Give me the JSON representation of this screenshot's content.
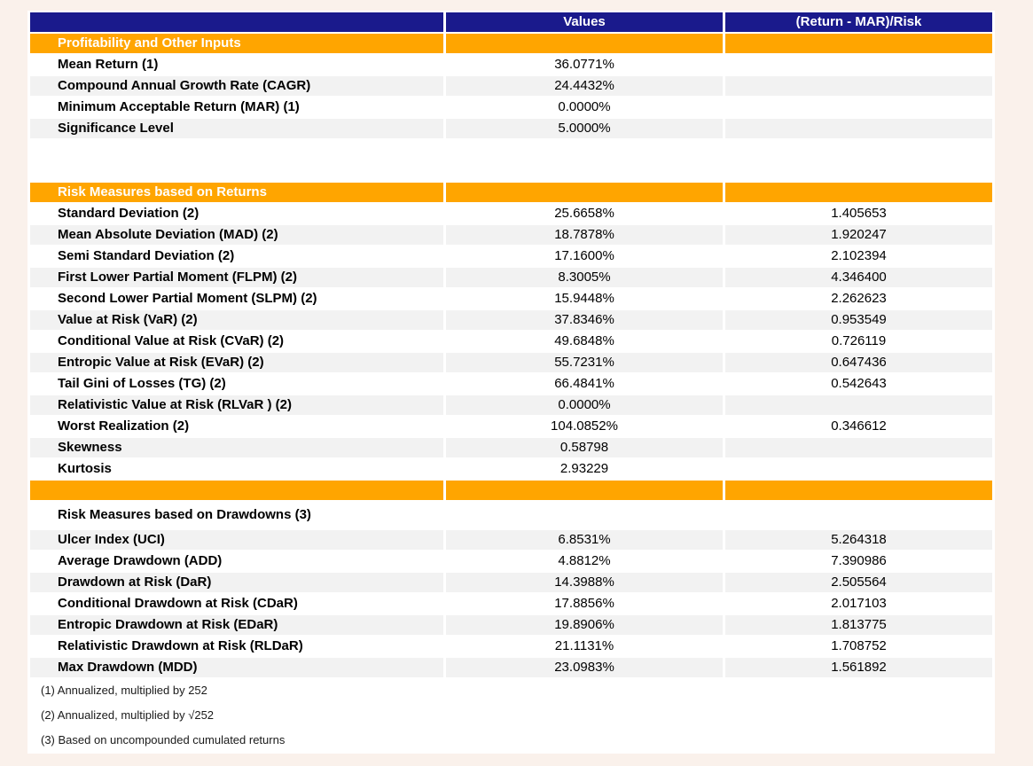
{
  "page": {
    "description": "Portfolio risk measures summary report table"
  },
  "colors": {
    "navy": "#1A1A8C",
    "orange": "#FFA500",
    "stripe": "#F2F2F2",
    "background": "#FAF1EB",
    "table_bg": "#FFFFFF",
    "header_text": "#FFFFFF",
    "label_text": "#000000",
    "footnote_text": "#1A1A1A"
  },
  "chart_data": {
    "type": "table",
    "columns": [
      "",
      "Values",
      "(Return - MAR)/Risk"
    ],
    "rows": [
      {
        "type": "section",
        "label": "Profitability and Other Inputs",
        "value": "",
        "ratio": ""
      },
      {
        "type": "data",
        "shade": false,
        "label": "Mean Return (1)",
        "value": "36.0771%",
        "ratio": ""
      },
      {
        "type": "data",
        "shade": true,
        "label": "Compound Annual Growth Rate (CAGR)",
        "value": "24.4432%",
        "ratio": ""
      },
      {
        "type": "data",
        "shade": false,
        "label": "Minimum Acceptable Return (MAR) (1)",
        "value": "0.0000%",
        "ratio": ""
      },
      {
        "type": "data",
        "shade": true,
        "label": "Significance Level",
        "value": "5.0000%",
        "ratio": ""
      },
      {
        "type": "blank"
      },
      {
        "type": "blank"
      },
      {
        "type": "section",
        "label": "Risk Measures based on Returns",
        "value": "",
        "ratio": ""
      },
      {
        "type": "data",
        "shade": false,
        "label": "Standard Deviation (2)",
        "value": "25.6658%",
        "ratio": "1.405653"
      },
      {
        "type": "data",
        "shade": true,
        "label": "Mean Absolute Deviation (MAD) (2)",
        "value": "18.7878%",
        "ratio": "1.920247"
      },
      {
        "type": "data",
        "shade": false,
        "label": "Semi Standard Deviation (2)",
        "value": "17.1600%",
        "ratio": "2.102394"
      },
      {
        "type": "data",
        "shade": true,
        "label": "First Lower Partial Moment (FLPM) (2)",
        "value": "8.3005%",
        "ratio": "4.346400"
      },
      {
        "type": "data",
        "shade": false,
        "label": "Second Lower Partial Moment (SLPM) (2)",
        "value": "15.9448%",
        "ratio": "2.262623"
      },
      {
        "type": "data",
        "shade": true,
        "label": "Value at Risk (VaR) (2)",
        "value": "37.8346%",
        "ratio": "0.953549"
      },
      {
        "type": "data",
        "shade": false,
        "label": "Conditional Value at Risk (CVaR) (2)",
        "value": "49.6848%",
        "ratio": "0.726119"
      },
      {
        "type": "data",
        "shade": true,
        "label": "Entropic Value at Risk (EVaR) (2)",
        "value": "55.7231%",
        "ratio": "0.647436"
      },
      {
        "type": "data",
        "shade": false,
        "label": "Tail Gini of Losses (TG) (2)",
        "value": "66.4841%",
        "ratio": "0.542643"
      },
      {
        "type": "data",
        "shade": true,
        "label": "Relativistic Value at Risk (RLVaR ) (2)",
        "value": "0.0000%",
        "ratio": ""
      },
      {
        "type": "data",
        "shade": false,
        "label": "Worst Realization (2)",
        "value": "104.0852%",
        "ratio": "0.346612"
      },
      {
        "type": "data",
        "shade": true,
        "label": "Skewness",
        "value": "0.58798",
        "ratio": ""
      },
      {
        "type": "data",
        "shade": false,
        "label": "Kurtosis",
        "value": "2.93229",
        "ratio": ""
      },
      {
        "type": "section",
        "label": "",
        "value": "",
        "ratio": ""
      },
      {
        "type": "subheader",
        "label": "Risk Measures based on Drawdowns (3)",
        "value": "",
        "ratio": ""
      },
      {
        "type": "data",
        "shade": true,
        "label": "Ulcer Index (UCI)",
        "value": "6.8531%",
        "ratio": "5.264318"
      },
      {
        "type": "data",
        "shade": false,
        "label": "Average Drawdown (ADD)",
        "value": "4.8812%",
        "ratio": "7.390986"
      },
      {
        "type": "data",
        "shade": true,
        "label": "Drawdown at Risk (DaR)",
        "value": "14.3988%",
        "ratio": "2.505564"
      },
      {
        "type": "data",
        "shade": false,
        "label": "Conditional Drawdown at Risk (CDaR)",
        "value": "17.8856%",
        "ratio": "2.017103"
      },
      {
        "type": "data",
        "shade": true,
        "label": "Entropic Drawdown at Risk (EDaR)",
        "value": "19.8906%",
        "ratio": "1.813775"
      },
      {
        "type": "data",
        "shade": false,
        "label": "Relativistic Drawdown at Risk (RLDaR)",
        "value": "21.1131%",
        "ratio": "1.708752"
      },
      {
        "type": "data",
        "shade": true,
        "label": "Max Drawdown (MDD)",
        "value": "23.0983%",
        "ratio": "1.561892"
      }
    ],
    "footnotes": [
      "(1) Annualized, multiplied by 252",
      "(2) Annualized, multiplied by √252",
      "(3) Based on uncompounded cumulated returns"
    ]
  }
}
